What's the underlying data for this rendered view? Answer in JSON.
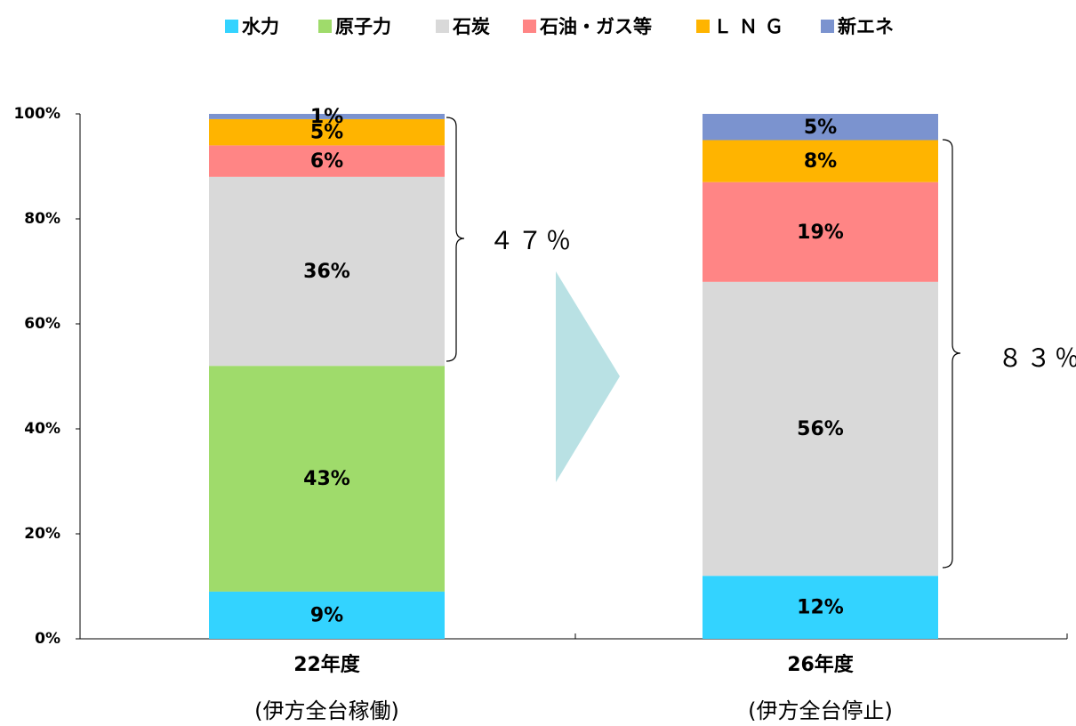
{
  "chart_data": {
    "type": "stacked_bar",
    "categories": [
      "22年度",
      "26年度"
    ],
    "subcategories": [
      "(伊方全台稼働)",
      "(伊方全台停止)"
    ],
    "series": [
      {
        "name": "水力",
        "color": "#33d3ff",
        "values": [
          9,
          12
        ],
        "value_labels": [
          "9%",
          "12%"
        ]
      },
      {
        "name": "原子力",
        "color": "#9fdb6b",
        "values": [
          43,
          0
        ],
        "value_labels": [
          "43%",
          null
        ]
      },
      {
        "name": "石炭",
        "color": "#d9d9d9",
        "values": [
          36,
          56
        ],
        "value_labels": [
          "36%",
          "56%"
        ]
      },
      {
        "name": "石油・ガス等",
        "color": "#ff8585",
        "values": [
          6,
          19
        ],
        "value_labels": [
          "6%",
          "19%"
        ]
      },
      {
        "name": "ＬＮＧ",
        "color": "#ffb400",
        "values": [
          5,
          8
        ],
        "value_labels": [
          "5%",
          "8%"
        ]
      },
      {
        "name": "新エネ",
        "color": "#7b93cf",
        "values": [
          1,
          5
        ],
        "value_labels": [
          "1%",
          "5%"
        ]
      }
    ],
    "ylim": [
      0,
      100
    ],
    "yticks": [
      {
        "value": 0,
        "label": "0%"
      },
      {
        "value": 20,
        "label": "20%"
      },
      {
        "value": 40,
        "label": "40%"
      },
      {
        "value": 60,
        "label": "60%"
      },
      {
        "value": 80,
        "label": "80%"
      },
      {
        "value": 100,
        "label": "100%"
      }
    ],
    "annotations": [
      "４７％",
      "８３％"
    ],
    "legend": "top"
  }
}
